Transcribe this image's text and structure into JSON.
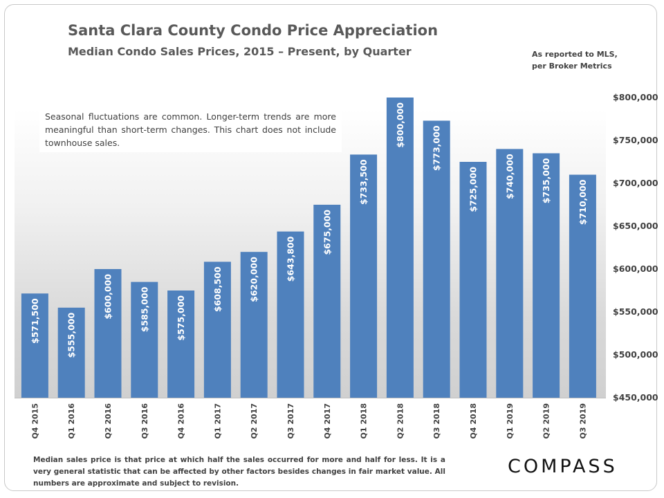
{
  "header": {
    "title": "Santa Clara County Condo Price Appreciation",
    "subtitle": "Median Condo Sales Prices, 2015 – Present, by Quarter",
    "source_line1": "As reported to MLS,",
    "source_line2": "per Broker Metrics"
  },
  "note": "Seasonal fluctuations are common. Longer-term trends are more meaningful than short-term changes. This chart does not include townhouse sales.",
  "footer": "Median sales price is that price at which half the sales occurred for more and half for less. It is a very general statistic that can be affected by other factors besides changes in fair market value. All numbers are approximate and subject to revision.",
  "logo": "COMPASS",
  "colors": {
    "bar": "#4f81bd",
    "bar_label": "#ffffff",
    "axis_text": "#404040"
  },
  "chart_data": {
    "type": "bar",
    "categories": [
      "Q4 2015",
      "Q1 2016",
      "Q2 2016",
      "Q3 2016",
      "Q4 2016",
      "Q1 2017",
      "Q2 2017",
      "Q3 2017",
      "Q4 2017",
      "Q1 2018",
      "Q2 2018",
      "Q3 2018",
      "Q4 2018",
      "Q1 2019",
      "Q2 2019",
      "Q3 2019"
    ],
    "values": [
      571500,
      555000,
      600000,
      585000,
      575000,
      608500,
      620000,
      643800,
      675000,
      733500,
      800000,
      773000,
      725000,
      740000,
      735000,
      710000
    ],
    "value_labels": [
      "$571,500",
      "$555,000",
      "$600,000",
      "$585,000",
      "$575,000",
      "$608,500",
      "$620,000",
      "$643,800",
      "$675,000",
      "$733,500",
      "$800,000",
      "$773,000",
      "$725,000",
      "$740,000",
      "$735,000",
      "$710,000"
    ],
    "ylim": [
      450000,
      800000
    ],
    "yticks": [
      450000,
      500000,
      550000,
      600000,
      650000,
      700000,
      750000,
      800000
    ],
    "ytick_labels": [
      "$450,000",
      "$500,000",
      "$550,000",
      "$600,000",
      "$650,000",
      "$700,000",
      "$750,000",
      "$800,000"
    ],
    "y_axis_side": "right",
    "grid": false
  }
}
